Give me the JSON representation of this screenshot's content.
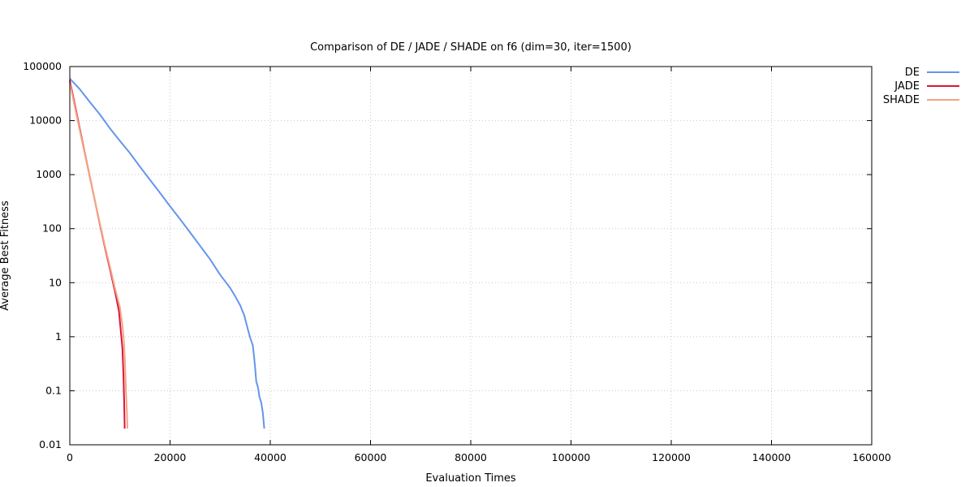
{
  "chart_data": {
    "type": "line",
    "title": "Comparison of DE / JADE / SHADE on f6 (dim=30, iter=1500)",
    "xlabel": "Evaluation Times",
    "ylabel": "Average Best Fitness",
    "x_scale": "linear",
    "y_scale": "log",
    "xlim": [
      0,
      160000
    ],
    "ylim": [
      0.01,
      100000
    ],
    "x_ticks": [
      "0",
      "20000",
      "40000",
      "60000",
      "80000",
      "100000",
      "120000",
      "140000",
      "160000"
    ],
    "y_ticks": [
      "100000",
      "10000",
      "1000",
      "100",
      "10",
      "1",
      "0.1",
      "0.01"
    ],
    "grid": true,
    "legend_position": "outside top-right",
    "series": [
      {
        "name": "DE",
        "color": "#6495ed",
        "points": [
          [
            0,
            60000
          ],
          [
            2000,
            38000
          ],
          [
            4000,
            22000
          ],
          [
            6000,
            13000
          ],
          [
            8000,
            7200
          ],
          [
            10000,
            4200
          ],
          [
            12000,
            2500
          ],
          [
            14000,
            1400
          ],
          [
            16000,
            800
          ],
          [
            18000,
            460
          ],
          [
            20000,
            260
          ],
          [
            22000,
            150
          ],
          [
            24000,
            85
          ],
          [
            26000,
            48
          ],
          [
            28000,
            27
          ],
          [
            30000,
            14
          ],
          [
            32000,
            8
          ],
          [
            33000,
            5.6
          ],
          [
            34000,
            3.8
          ],
          [
            34800,
            2.5
          ],
          [
            35500,
            1.4
          ],
          [
            36000,
            0.95
          ],
          [
            36500,
            0.7
          ],
          [
            36800,
            0.4
          ],
          [
            37000,
            0.25
          ],
          [
            37200,
            0.15
          ],
          [
            37600,
            0.11
          ],
          [
            37800,
            0.08
          ],
          [
            38200,
            0.06
          ],
          [
            38500,
            0.04
          ],
          [
            38800,
            0.02
          ]
        ]
      },
      {
        "name": "JADE",
        "color": "#dc143c",
        "points": [
          [
            0,
            55000
          ],
          [
            1000,
            20000
          ],
          [
            2000,
            7000
          ],
          [
            3000,
            2500
          ],
          [
            4000,
            900
          ],
          [
            5000,
            330
          ],
          [
            6000,
            120
          ],
          [
            7000,
            45
          ],
          [
            8000,
            18
          ],
          [
            9000,
            7
          ],
          [
            9800,
            3
          ],
          [
            10200,
            1.2
          ],
          [
            10500,
            0.6
          ],
          [
            10700,
            0.2
          ],
          [
            10850,
            0.06
          ],
          [
            10950,
            0.02
          ]
        ]
      },
      {
        "name": "SHADE",
        "color": "#f4a582",
        "points": [
          [
            0,
            50000
          ],
          [
            1000,
            18000
          ],
          [
            2000,
            6500
          ],
          [
            3000,
            2400
          ],
          [
            4000,
            880
          ],
          [
            5000,
            330
          ],
          [
            6000,
            125
          ],
          [
            7000,
            48
          ],
          [
            8000,
            20
          ],
          [
            9000,
            8
          ],
          [
            10000,
            3.5
          ],
          [
            10500,
            1.6
          ],
          [
            10800,
            0.8
          ],
          [
            11000,
            0.35
          ],
          [
            11200,
            0.1
          ],
          [
            11400,
            0.04
          ],
          [
            11500,
            0.02
          ]
        ]
      }
    ]
  }
}
